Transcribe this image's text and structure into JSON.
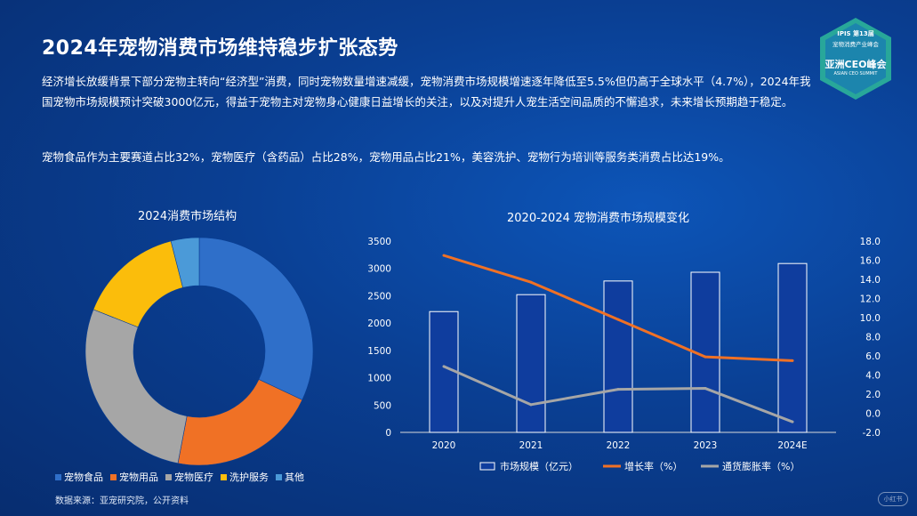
{
  "header": {
    "title": "2024年宠物消费市场维持稳步扩张态势",
    "paragraph1": "经济增长放缓背景下部分宠物主转向“经济型”消费，同时宠物数量增速减缓，宠物消费市场规模增速逐年降低至5.5%但仍高于全球水平（4.7%），2024年我国宠物市场规模预计突破3000亿元，得益于宠物主对宠物身心健康日益增长的关注，以及对提升人宠生活空间品质的不懈追求，未来增长预期趋于稳定。",
    "paragraph2": "宠物食品作为主要赛道占比32%，宠物医疗（含药品）占比28%，宠物用品占比21%，美容洗护、宠物行为培训等服务类消费占比达19%。"
  },
  "logo": {
    "line1": "IPIS 第13届",
    "line2": "宠物消费产业峰会",
    "line3": "",
    "line4": "亚洲CEO峰会",
    "line5": "ASIAN CEO SUMMIT"
  },
  "source": "数据来源：亚宠研究院，公开资料",
  "watermark": "小红书",
  "chart_data": [
    {
      "type": "pie",
      "title": "2024消费市场结构",
      "donut": true,
      "categories": [
        "宠物食品",
        "宠物用品",
        "宠物医疗",
        "洗护服务",
        "其他"
      ],
      "values": [
        32,
        21,
        28,
        15,
        4
      ],
      "colors": [
        "#2f6fc9",
        "#f07125",
        "#a6a6a6",
        "#fbbd0b",
        "#4b9ad8"
      ],
      "legend_position": "bottom"
    },
    {
      "type": "bar",
      "title": "2020-2024  宠物消费市场规模变化",
      "categories": [
        "2020",
        "2021",
        "2022",
        "2023",
        "2024E"
      ],
      "ylim_left": [
        0,
        3500
      ],
      "yticks_left": [
        "0",
        "500",
        "1000",
        "1500",
        "2000",
        "2500",
        "3000",
        "3500"
      ],
      "ylim_right": [
        -2,
        18
      ],
      "yticks_right": [
        "-2.0",
        "0.0",
        "2.0",
        "4.0",
        "6.0",
        "8.0",
        "10.0",
        "12.0",
        "14.0",
        "16.0",
        "18.0"
      ],
      "series": [
        {
          "name": "市场规模（亿元）",
          "kind": "bar",
          "axis": "left",
          "color": "#0f3d9e",
          "values": [
            2210,
            2520,
            2770,
            2930,
            3090
          ]
        },
        {
          "name": "增长率（%）",
          "kind": "line",
          "axis": "right",
          "color": "#f07125",
          "values": [
            16.5,
            13.7,
            9.8,
            5.9,
            5.5
          ]
        },
        {
          "name": "通货膨胀率（%）",
          "kind": "line",
          "axis": "right",
          "color": "#a6a6a6",
          "values": [
            4.9,
            0.9,
            2.5,
            2.6,
            -0.9
          ]
        }
      ],
      "grid": false,
      "legend_position": "bottom"
    }
  ]
}
